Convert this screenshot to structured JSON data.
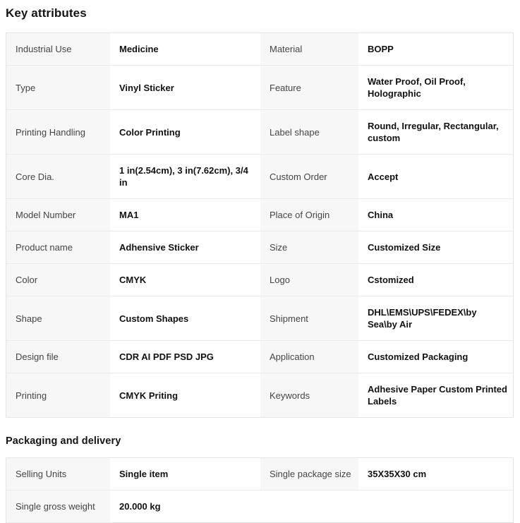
{
  "colors": {
    "label_bg": "#f7f7f7",
    "border": "#e5e5e5",
    "label_text": "#444444",
    "value_text": "#111111",
    "heading_text": "#151515"
  },
  "key_attributes": {
    "title": "Key attributes",
    "rows": [
      {
        "l1": "Industrial Use",
        "v1": "Medicine",
        "l2": "Material",
        "v2": "BOPP"
      },
      {
        "l1": "Type",
        "v1": "Vinyl Sticker",
        "l2": "Feature",
        "v2": "Water Proof, Oil Proof, Holographic"
      },
      {
        "l1": "Printing Handling",
        "v1": "Color Printing",
        "l2": "Label shape",
        "v2": "Round, Irregular, Rectangular, custom"
      },
      {
        "l1": "Core Dia.",
        "v1": "1 in(2.54cm), 3 in(7.62cm), 3/4 in",
        "l2": "Custom Order",
        "v2": "Accept"
      },
      {
        "l1": "Model Number",
        "v1": "MA1",
        "l2": "Place of Origin",
        "v2": "China"
      },
      {
        "l1": "Product name",
        "v1": "Adhensive Sticker",
        "l2": "Size",
        "v2": "Customized Size"
      },
      {
        "l1": "Color",
        "v1": "CMYK",
        "l2": "Logo",
        "v2": "Cstomized"
      },
      {
        "l1": "Shape",
        "v1": "Custom Shapes",
        "l2": "Shipment",
        "v2": "DHL\\EMS\\UPS\\FEDEX\\by Sea\\by Air"
      },
      {
        "l1": "Design file",
        "v1": "CDR AI PDF PSD JPG",
        "l2": "Application",
        "v2": "Customized Packaging"
      },
      {
        "l1": "Printing",
        "v1": "CMYK Priting",
        "l2": "Keywords",
        "v2": "Adhesive Paper Custom Printed Labels"
      }
    ]
  },
  "packaging_delivery": {
    "title": "Packaging and delivery",
    "rows": [
      {
        "l1": "Selling Units",
        "v1": "Single item",
        "l2": "Single package size",
        "v2": "35X35X30 cm"
      },
      {
        "l1": "Single gross weight",
        "v1": "20.000 kg",
        "l2": "",
        "v2": ""
      }
    ]
  }
}
